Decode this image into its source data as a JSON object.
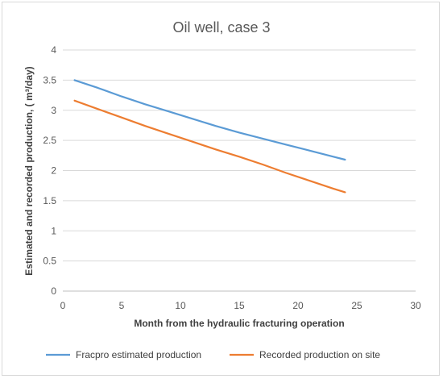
{
  "chart_data": {
    "type": "line",
    "title": "Oil well, case 3",
    "xlabel": "Month  from the hydraulic fracturing operation",
    "ylabel": "Estimated and recorded production, ( m³/day)",
    "xlim": [
      0,
      30
    ],
    "ylim": [
      0,
      4
    ],
    "xticks": [
      0,
      5,
      10,
      15,
      20,
      25,
      30
    ],
    "yticks": [
      0,
      0.5,
      1,
      1.5,
      2,
      2.5,
      3,
      3.5,
      4
    ],
    "xtick_labels": [
      "0",
      "5",
      "10",
      "15",
      "20",
      "25",
      "30"
    ],
    "ytick_labels": [
      "0",
      "0.5",
      "1",
      "1.5",
      "2",
      "2.5",
      "3",
      "3.5",
      "4"
    ],
    "grid": "horizontal",
    "legend_position": "bottom",
    "series": [
      {
        "name": "Fracpro estimated production",
        "color": "#5b9bd5",
        "x": [
          1,
          3,
          5,
          7,
          9,
          11,
          13,
          15,
          17,
          19,
          21,
          23,
          24
        ],
        "y": [
          3.5,
          3.37,
          3.23,
          3.1,
          2.98,
          2.86,
          2.74,
          2.63,
          2.53,
          2.43,
          2.33,
          2.23,
          2.18
        ]
      },
      {
        "name": "Recorded production  on site",
        "color": "#ed7d31",
        "x": [
          1,
          3,
          5,
          7,
          9,
          11,
          13,
          15,
          17,
          19,
          21,
          23,
          24
        ],
        "y": [
          3.16,
          3.02,
          2.88,
          2.74,
          2.61,
          2.48,
          2.35,
          2.23,
          2.1,
          1.96,
          1.83,
          1.7,
          1.64
        ]
      }
    ]
  }
}
